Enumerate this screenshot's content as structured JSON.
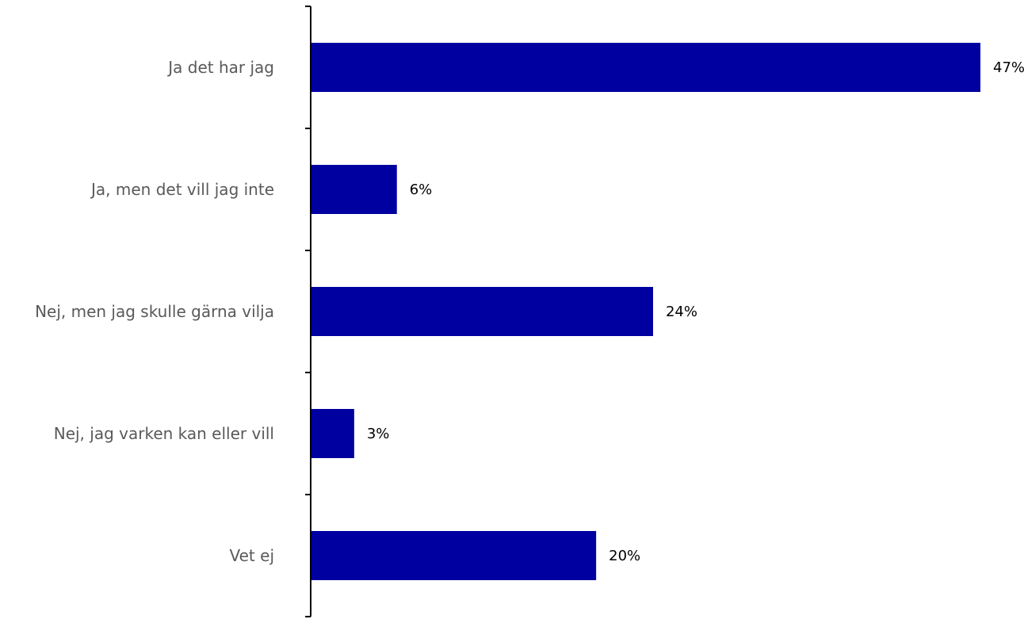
{
  "chart_data": {
    "type": "bar",
    "orientation": "horizontal",
    "categories": [
      "Ja det har jag",
      "Ja, men det vill jag inte",
      "Nej, men jag skulle gärna vilja",
      "Nej, jag varken kan eller vill",
      "Vet ej"
    ],
    "values": [
      47,
      6,
      24,
      3,
      20
    ],
    "data_labels": [
      "47%",
      "6%",
      "24%",
      "3%",
      "20%"
    ],
    "unit": "%",
    "xlim": [
      0,
      50
    ],
    "bar_color": "#0000A0",
    "title": "",
    "xlabel": "",
    "ylabel": "",
    "grid": false,
    "legend": "none"
  }
}
